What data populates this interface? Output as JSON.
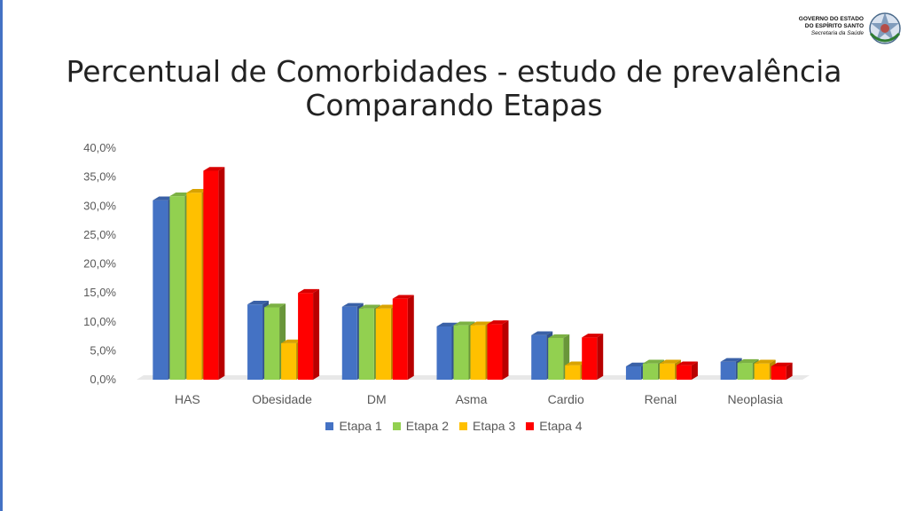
{
  "header": {
    "title_line1": "Percentual de Comorbidades - estudo de prevalência",
    "title_line2": "Comparando Etapas"
  },
  "logo": {
    "line1": "GOVERNO DO ESTADO",
    "line2": "DO ESPÍRITO SANTO",
    "line3": "Secretaria da Saúde"
  },
  "chart_data": {
    "type": "bar",
    "title": "Percentual de Comorbidades - estudo de prevalência Comparando Etapas",
    "categories": [
      "HAS",
      "Obesidade",
      "DM",
      "Asma",
      "Cardio",
      "Renal",
      "Neoplasia"
    ],
    "series": [
      {
        "name": "Etapa 1",
        "color": "#4472c4",
        "values": [
          31.0,
          13.0,
          12.6,
          9.2,
          7.7,
          2.3,
          3.1
        ]
      },
      {
        "name": "Etapa 2",
        "color": "#92d050",
        "values": [
          31.7,
          12.5,
          12.3,
          9.4,
          7.2,
          2.8,
          2.9
        ]
      },
      {
        "name": "Etapa 3",
        "color": "#ffc000",
        "values": [
          32.3,
          6.3,
          12.3,
          9.4,
          2.5,
          2.8,
          2.8
        ]
      },
      {
        "name": "Etapa 4",
        "color": "#ff0000",
        "values": [
          36.1,
          15.0,
          14.0,
          9.6,
          7.3,
          2.5,
          2.3
        ]
      }
    ],
    "yticks": [
      "0,0%",
      "5,0%",
      "10,0%",
      "15,0%",
      "20,0%",
      "25,0%",
      "30,0%",
      "35,0%",
      "40,0%"
    ],
    "ylim": [
      0,
      40
    ],
    "legend_position": "bottom",
    "grid": false
  }
}
